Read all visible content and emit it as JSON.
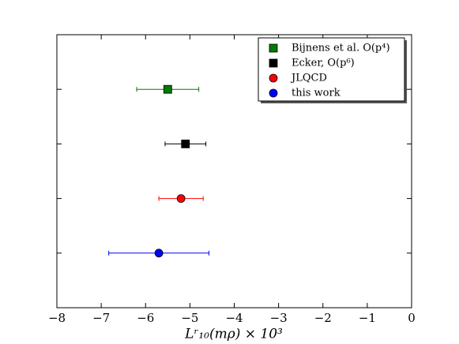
{
  "chart_data": {
    "type": "errorbar",
    "xlabel": "Lʳ₁₀(mρ) × 10³",
    "categories": [
      null,
      null,
      null,
      null
    ],
    "series": [
      {
        "name": "Bijnens et al. O(p⁴)",
        "color": "#007a00",
        "marker": "square",
        "value": -5.5,
        "error": 0.7
      },
      {
        "name": "Ecker, O(p⁶)",
        "color": "#000000",
        "marker": "square",
        "value": -5.1,
        "error": 0.46
      },
      {
        "name": "JLQCD",
        "color": "#ff0000",
        "marker": "circle",
        "value": -5.2,
        "error": 0.5
      },
      {
        "name": "this work",
        "color": "#0000ff",
        "marker": "circle",
        "value": -5.7,
        "error": 1.13
      }
    ],
    "xlim": [
      -8,
      0
    ],
    "xticks": [
      {
        "value": -8,
        "label": "−8"
      },
      {
        "value": -7,
        "label": "−7"
      },
      {
        "value": -6,
        "label": "−6"
      },
      {
        "value": -5,
        "label": "−5"
      },
      {
        "value": -4,
        "label": "−4"
      },
      {
        "value": -3,
        "label": "−3"
      },
      {
        "value": -2,
        "label": "−2"
      },
      {
        "value": -1,
        "label": "−1"
      },
      0
    ],
    "legend": "upper right"
  }
}
